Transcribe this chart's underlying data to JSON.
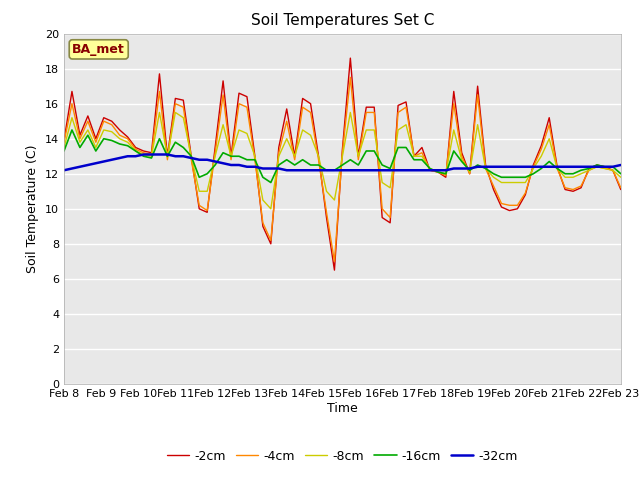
{
  "title": "Soil Temperatures Set C",
  "xlabel": "Time",
  "ylabel": "Soil Temperature (C)",
  "ylim": [
    0,
    20
  ],
  "yticks": [
    0,
    2,
    4,
    6,
    8,
    10,
    12,
    14,
    16,
    18,
    20
  ],
  "x_labels": [
    "Feb 8",
    "Feb 9",
    "Feb 10",
    "Feb 11",
    "Feb 12",
    "Feb 13",
    "Feb 14",
    "Feb 15",
    "Feb 16",
    "Feb 17",
    "Feb 18",
    "Feb 19",
    "Feb 20",
    "Feb 21",
    "Feb 22",
    "Feb 23"
  ],
  "legend_labels": [
    "-2cm",
    "-4cm",
    "-8cm",
    "-16cm",
    "-32cm"
  ],
  "line_colors": [
    "#cc0000",
    "#ff8800",
    "#cccc00",
    "#00aa00",
    "#0000cc"
  ],
  "line_widths": [
    1.0,
    1.0,
    1.0,
    1.2,
    1.8
  ],
  "bg_color": "#e8e8e8",
  "plot_bg_color": "#e8e8e8",
  "annotation_text": "BA_met",
  "annotation_box_color": "#ffff99",
  "annotation_text_color": "#880000",
  "grid_color": "#ffffff",
  "d2cm": [
    13.9,
    16.7,
    14.2,
    15.3,
    14.0,
    15.2,
    15.0,
    14.5,
    14.1,
    13.5,
    13.3,
    13.2,
    17.7,
    13.0,
    16.3,
    16.2,
    13.0,
    10.0,
    9.8,
    13.5,
    17.3,
    13.0,
    16.6,
    16.4,
    13.0,
    9.0,
    8.0,
    13.5,
    15.7,
    13.0,
    16.3,
    16.0,
    13.0,
    9.5,
    6.5,
    13.4,
    18.6,
    13.0,
    15.8,
    15.8,
    9.5,
    9.2,
    15.9,
    16.1,
    13.0,
    13.5,
    12.2,
    12.1,
    11.8,
    16.7,
    13.2,
    12.0,
    17.0,
    12.5,
    11.1,
    10.1,
    9.9,
    10.0,
    10.8,
    12.5,
    13.6,
    15.2,
    12.4,
    11.1,
    11.0,
    11.2,
    12.3,
    12.5,
    12.4,
    12.2,
    11.1
  ],
  "d4cm": [
    13.8,
    16.0,
    14.0,
    15.0,
    13.8,
    15.0,
    14.8,
    14.2,
    14.0,
    13.4,
    13.2,
    13.1,
    16.7,
    12.8,
    16.0,
    15.8,
    12.8,
    10.2,
    9.9,
    13.2,
    16.5,
    12.8,
    16.0,
    15.8,
    12.8,
    9.2,
    8.2,
    13.2,
    15.0,
    12.8,
    15.8,
    15.5,
    12.8,
    9.8,
    7.0,
    13.2,
    17.5,
    12.8,
    15.5,
    15.5,
    10.0,
    9.5,
    15.5,
    15.8,
    13.0,
    13.2,
    12.2,
    12.1,
    11.9,
    16.0,
    13.0,
    12.0,
    16.5,
    12.3,
    11.3,
    10.3,
    10.2,
    10.2,
    10.9,
    12.4,
    13.4,
    14.8,
    12.3,
    11.2,
    11.1,
    11.3,
    12.2,
    12.4,
    12.3,
    12.2,
    11.2
  ],
  "d8cm": [
    13.5,
    15.2,
    13.8,
    14.5,
    13.5,
    14.5,
    14.4,
    14.0,
    13.8,
    13.3,
    13.1,
    13.0,
    15.5,
    13.0,
    15.5,
    15.2,
    13.0,
    11.0,
    11.0,
    13.0,
    14.8,
    13.0,
    14.5,
    14.3,
    13.0,
    10.5,
    10.0,
    13.0,
    14.0,
    13.0,
    14.5,
    14.2,
    13.0,
    11.0,
    10.5,
    13.0,
    15.5,
    13.0,
    14.5,
    14.5,
    11.5,
    11.2,
    14.5,
    14.8,
    13.0,
    13.0,
    12.3,
    12.1,
    12.0,
    14.5,
    12.8,
    12.1,
    14.8,
    12.3,
    11.8,
    11.5,
    11.5,
    11.5,
    11.5,
    12.3,
    13.0,
    14.0,
    12.3,
    11.8,
    11.8,
    12.0,
    12.2,
    12.4,
    12.3,
    12.2,
    11.8
  ],
  "d16cm": [
    13.3,
    14.5,
    13.5,
    14.2,
    13.3,
    14.0,
    13.9,
    13.7,
    13.6,
    13.3,
    13.0,
    12.9,
    14.0,
    13.0,
    13.8,
    13.5,
    13.0,
    11.8,
    12.0,
    12.5,
    13.2,
    13.0,
    13.0,
    12.8,
    12.8,
    11.8,
    11.5,
    12.5,
    12.8,
    12.5,
    12.8,
    12.5,
    12.5,
    12.2,
    12.2,
    12.5,
    12.8,
    12.5,
    13.3,
    13.3,
    12.5,
    12.3,
    13.5,
    13.5,
    12.8,
    12.8,
    12.3,
    12.1,
    12.0,
    13.3,
    12.7,
    12.2,
    12.5,
    12.3,
    12.0,
    11.8,
    11.8,
    11.8,
    11.8,
    12.0,
    12.3,
    12.7,
    12.3,
    12.0,
    12.0,
    12.2,
    12.3,
    12.5,
    12.4,
    12.4,
    12.0
  ],
  "d32cm": [
    12.2,
    12.3,
    12.4,
    12.5,
    12.6,
    12.7,
    12.8,
    12.9,
    13.0,
    13.0,
    13.1,
    13.1,
    13.1,
    13.1,
    13.0,
    13.0,
    12.9,
    12.8,
    12.8,
    12.7,
    12.6,
    12.5,
    12.5,
    12.4,
    12.4,
    12.3,
    12.3,
    12.3,
    12.2,
    12.2,
    12.2,
    12.2,
    12.2,
    12.2,
    12.2,
    12.2,
    12.2,
    12.2,
    12.2,
    12.2,
    12.2,
    12.2,
    12.2,
    12.2,
    12.2,
    12.2,
    12.2,
    12.2,
    12.2,
    12.3,
    12.3,
    12.3,
    12.4,
    12.4,
    12.4,
    12.4,
    12.4,
    12.4,
    12.4,
    12.4,
    12.4,
    12.4,
    12.4,
    12.4,
    12.4,
    12.4,
    12.4,
    12.4,
    12.4,
    12.4,
    12.5
  ]
}
